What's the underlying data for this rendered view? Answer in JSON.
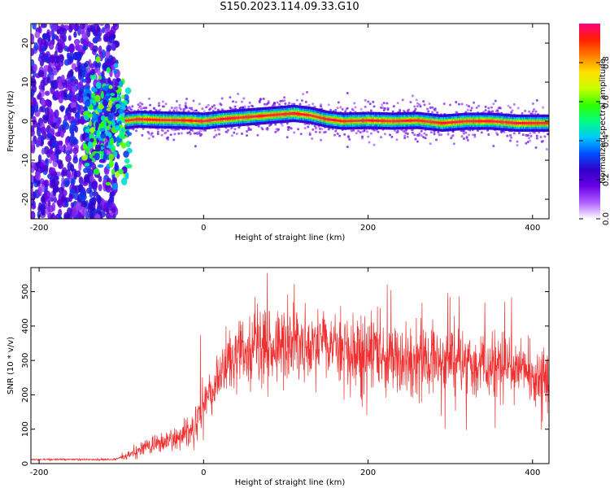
{
  "title": "S150.2023.114.09.33.G10",
  "chart_data": [
    {
      "type": "heatmap",
      "xlabel": "Height of straight line (km)",
      "ylabel": "Frequency (Hz)",
      "xlim": [
        -210,
        420
      ],
      "ylim": [
        -25,
        25
      ],
      "xticks": [
        -200,
        0,
        200,
        400
      ],
      "yticks": [
        -20,
        -10,
        0,
        10,
        20
      ],
      "grid": false,
      "colorbar": {
        "label": "Normalized spectral amplitude",
        "range": [
          0,
          1
        ],
        "ticks": [
          0.0,
          0.2,
          0.4,
          0.6,
          0.8
        ],
        "colors": [
          "#ffffff",
          "#b060ff",
          "#6a00e6",
          "#3000c8",
          "#0050ff",
          "#00c8ff",
          "#00ff80",
          "#30ff00",
          "#c8ff00",
          "#ffe000",
          "#ff8000",
          "#ff2000",
          "#ff0080"
        ]
      },
      "ridge": {
        "x": [
          -100,
          -80,
          -50,
          -20,
          0,
          20,
          50,
          80,
          110,
          130,
          150,
          170,
          200,
          230,
          260,
          290,
          320,
          350,
          380,
          420
        ],
        "y": [
          0,
          0.5,
          0.3,
          0.2,
          0,
          0.5,
          1,
          1.5,
          2,
          1.5,
          0.5,
          0,
          0.2,
          0,
          0.2,
          -0.5,
          0,
          0,
          -0.5,
          -0.5
        ]
      }
    },
    {
      "type": "line",
      "xlabel": "Height of straight line (km)",
      "ylabel": "SNR (10 * v/v)",
      "xlim": [
        -210,
        420
      ],
      "ylim": [
        0,
        570
      ],
      "xticks": [
        -200,
        0,
        200,
        400
      ],
      "yticks": [
        0,
        100,
        200,
        300,
        400,
        500
      ],
      "grid": false,
      "color": "#f03030",
      "envelope": {
        "x": [
          -210,
          -150,
          -110,
          -90,
          -70,
          -50,
          -30,
          -15,
          0,
          20,
          40,
          60,
          100,
          150,
          200,
          250,
          300,
          350,
          380,
          400,
          420
        ],
        "y": [
          12,
          12,
          12,
          25,
          50,
          60,
          75,
          100,
          160,
          260,
          310,
          330,
          345,
          340,
          330,
          310,
          300,
          290,
          280,
          270,
          230
        ]
      }
    }
  ]
}
